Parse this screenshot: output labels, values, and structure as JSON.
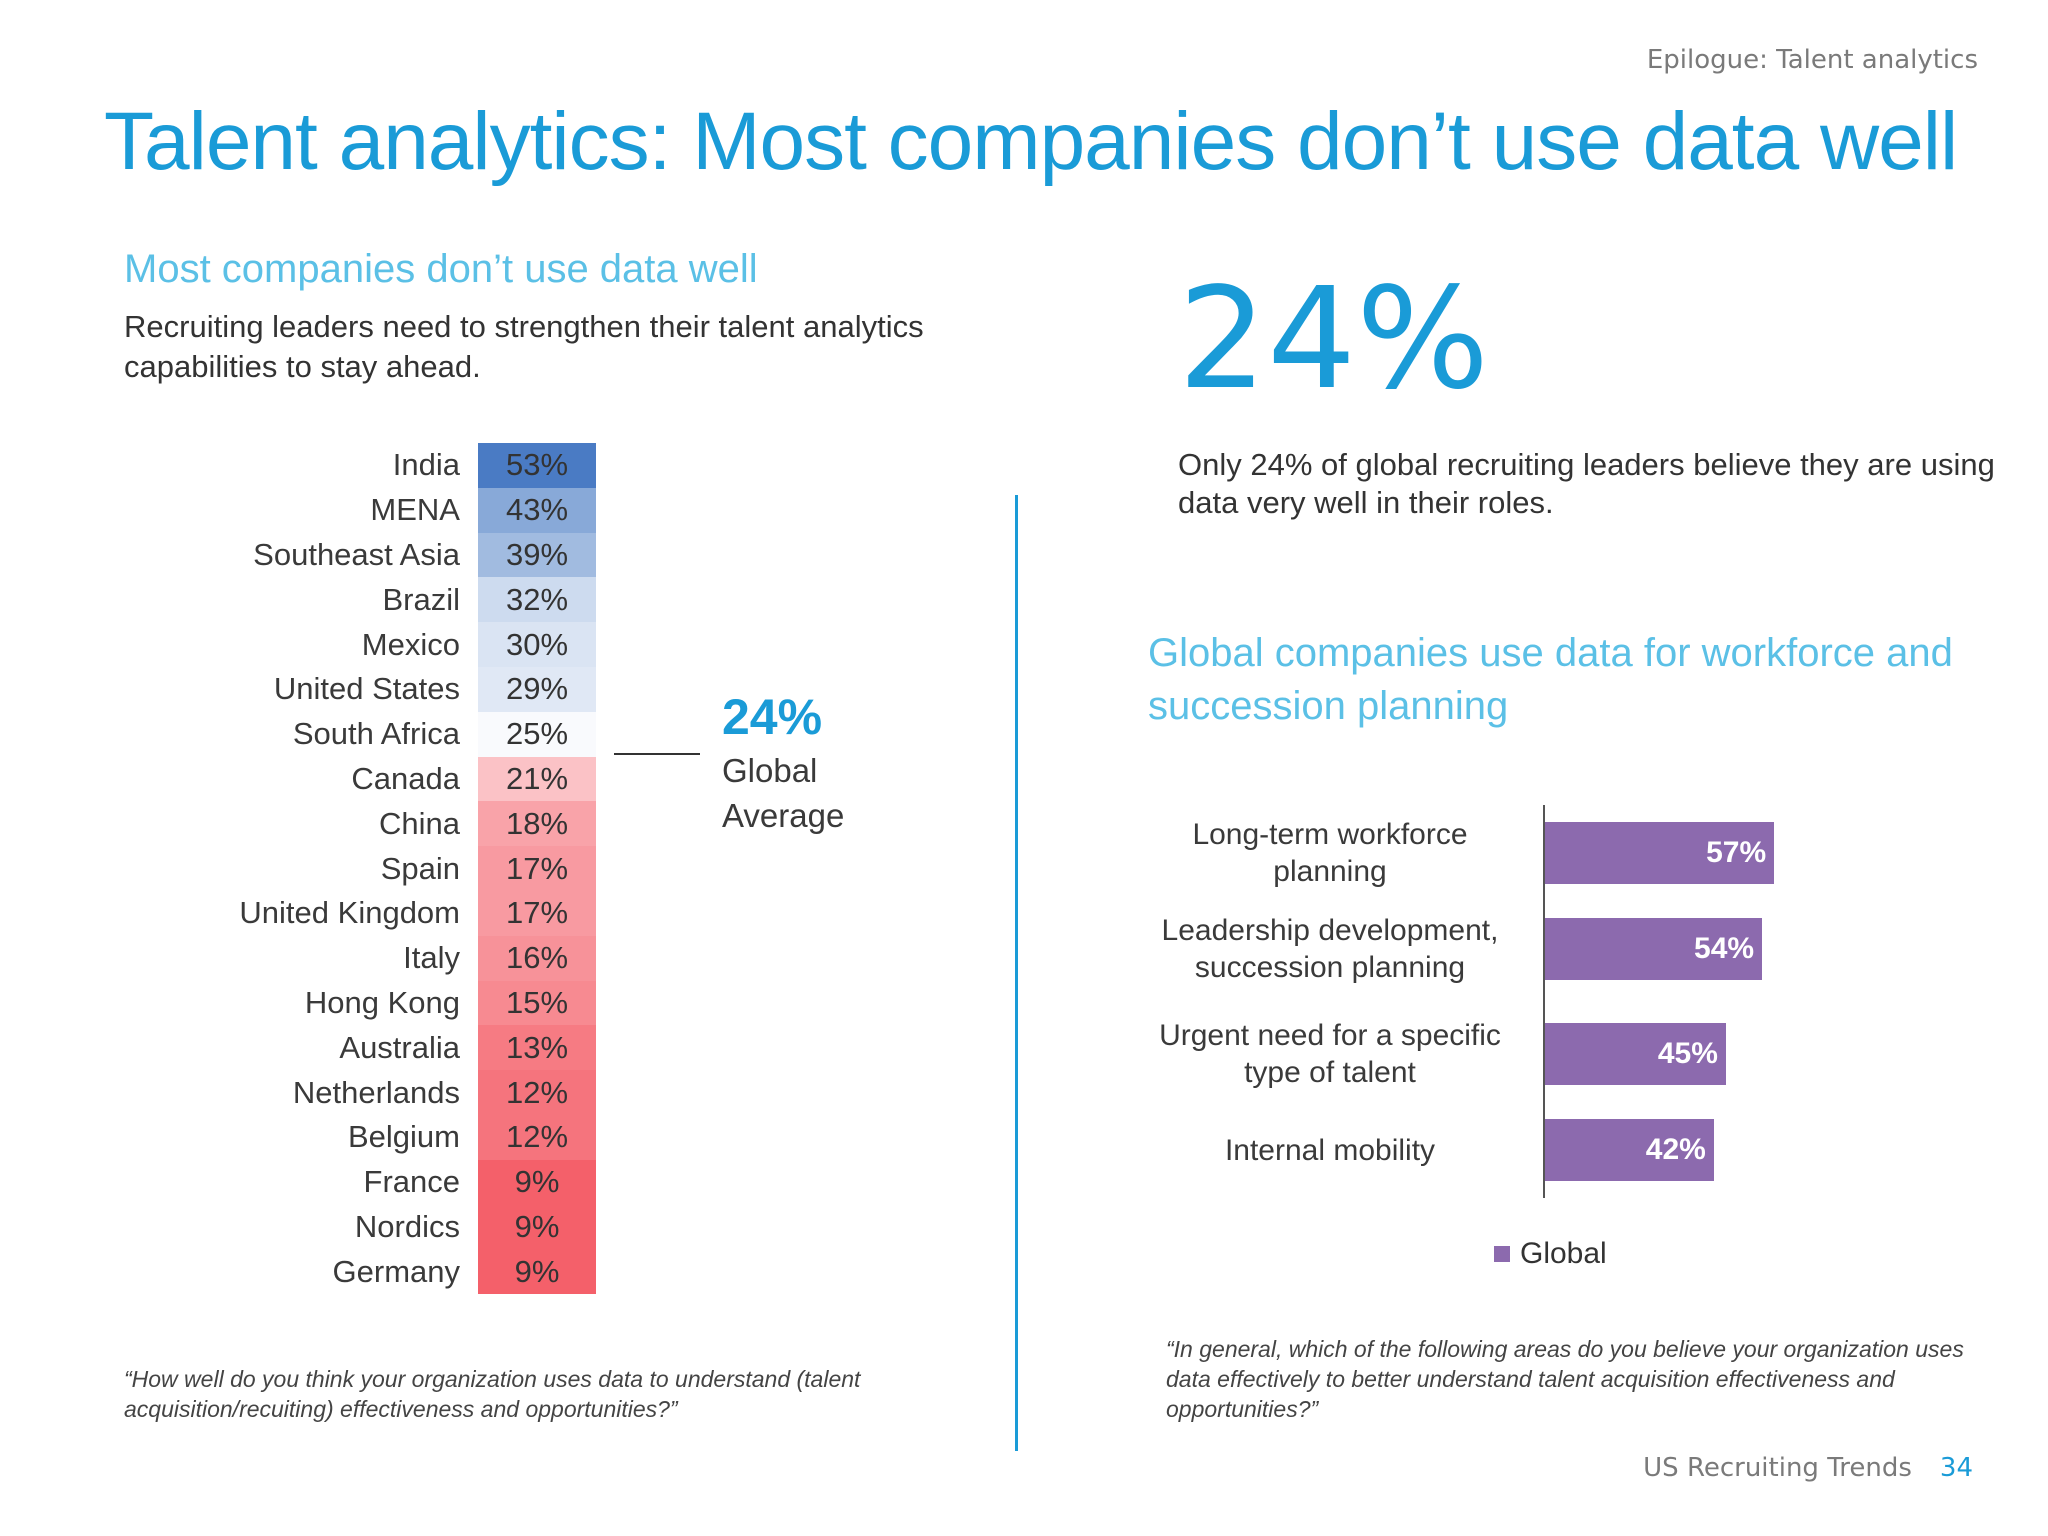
{
  "header": {
    "section_label": "Epilogue: Talent analytics",
    "title": "Talent analytics: Most companies don’t use data well"
  },
  "left": {
    "subtitle": "Most companies don’t use data well",
    "description": "Recruiting leaders need to strengthen their talent analytics capabilities to stay ahead.",
    "global_average_value": "24%",
    "global_average_label": "Global Average",
    "question": "“How well do you think your organization uses data to understand (talent acquisition/recuiting) effectiveness and opportunities?”"
  },
  "right": {
    "big_stat": "24%",
    "big_stat_desc": "Only 24% of global recruiting leaders believe they are using data very well in their roles.",
    "subtitle": "Global companies use data for workforce and succession planning",
    "question": "“In general, which of the following areas do you believe your organization uses data effectively to better understand talent acquisition effectiveness and opportunities?”"
  },
  "footer": {
    "text": "US Recruiting Trends",
    "page": "34"
  },
  "colors": {
    "accent": "#1a9bd7",
    "light_accent": "#5bc0e6",
    "bar": "#8c6aae"
  },
  "chart_data": [
    {
      "type": "heatmap",
      "categories": [
        "India",
        "MENA",
        "Southeast Asia",
        "Brazil",
        "Mexico",
        "United States",
        "South Africa",
        "Canada",
        "China",
        "Spain",
        "United Kingdom",
        "Italy",
        "Hong Kong",
        "Australia",
        "Netherlands",
        "Belgium",
        "France",
        "Nordics",
        "Germany"
      ],
      "values": [
        53,
        43,
        39,
        32,
        30,
        29,
        25,
        21,
        18,
        17,
        17,
        16,
        15,
        13,
        12,
        12,
        9,
        9,
        9
      ],
      "labels": [
        "53%",
        "43%",
        "39%",
        "32%",
        "30%",
        "29%",
        "25%",
        "21%",
        "18%",
        "17%",
        "17%",
        "16%",
        "15%",
        "13%",
        "12%",
        "12%",
        "9%",
        "9%",
        "9%"
      ],
      "reference": {
        "value": 24,
        "label": "24%"
      },
      "color_scale": [
        "#4a7bc4",
        "#ffffff",
        "#f4606a"
      ]
    },
    {
      "type": "bar",
      "orientation": "horizontal",
      "categories": [
        "Long-term workforce planning",
        "Leadership development, succession planning",
        "Urgent need for a specific type of talent",
        "Internal mobility"
      ],
      "category_lines": [
        [
          "Long-term workforce",
          "planning"
        ],
        [
          "Leadership development,",
          "succession planning"
        ],
        [
          "Urgent need for a specific",
          "type of talent"
        ],
        [
          "Internal mobility"
        ]
      ],
      "series": [
        {
          "name": "Global",
          "values": [
            57,
            54,
            45,
            42
          ],
          "labels": [
            "57%",
            "54%",
            "45%",
            "42%"
          ]
        }
      ],
      "legend": "bottom"
    }
  ]
}
